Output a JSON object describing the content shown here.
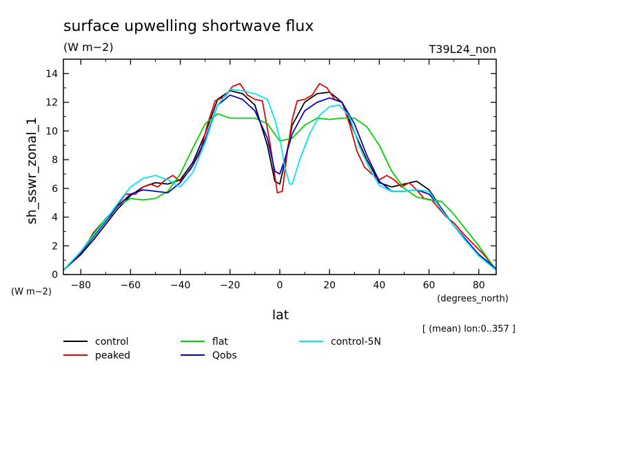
{
  "chart_data": {
    "type": "line",
    "title": "surface upwelling shortwave flux",
    "subtitle": "(W m−2)",
    "run_label": "T39L24_non",
    "ylabel": "sh_sswr_zonal_1",
    "y_units": "(W m−2)",
    "xlabel": "lat",
    "x_units": "(degrees_north)",
    "averaging_note": "[ (mean) lon:0..357 ]",
    "xlim": [
      -87,
      87
    ],
    "ylim": [
      0,
      15
    ],
    "xticks": [
      -80,
      -60,
      -40,
      -20,
      0,
      20,
      40,
      60,
      80
    ],
    "xtick_labels": [
      "−80",
      "−60",
      "−40",
      "−20",
      "0",
      "20",
      "40",
      "60",
      "80"
    ],
    "yticks": [
      0,
      2,
      4,
      6,
      8,
      10,
      12,
      14
    ],
    "ytick_labels": [
      "0",
      "2",
      "4",
      "6",
      "8",
      "10",
      "12",
      "14"
    ],
    "grid": false,
    "legend_position": "bottom",
    "series": [
      {
        "name": "control",
        "color": "#000000",
        "x": [
          -87,
          -80,
          -75,
          -70,
          -65,
          -60,
          -55,
          -50,
          -45,
          -40,
          -35,
          -30,
          -25,
          -20,
          -15,
          -10,
          -5,
          -2,
          0,
          2,
          5,
          10,
          15,
          20,
          25,
          30,
          35,
          40,
          45,
          50,
          55,
          60,
          65,
          70,
          75,
          80,
          87
        ],
        "y": [
          0.3,
          1.4,
          2.4,
          3.5,
          4.6,
          5.5,
          6.1,
          6.4,
          6.3,
          6.6,
          7.8,
          9.8,
          12.2,
          12.8,
          12.6,
          11.8,
          9.0,
          6.5,
          6.3,
          7.8,
          10.4,
          12.0,
          12.6,
          12.7,
          12.0,
          9.9,
          8.0,
          6.4,
          6.1,
          6.3,
          6.5,
          5.9,
          4.6,
          3.4,
          2.3,
          1.4,
          0.4
        ]
      },
      {
        "name": "peaked",
        "color": "#e00000",
        "x": [
          -87,
          -82,
          -78,
          -75,
          -72,
          -68,
          -65,
          -62,
          -58,
          -55,
          -52,
          -49,
          -46,
          -43,
          -40,
          -36,
          -32,
          -29,
          -26,
          -22,
          -19,
          -16,
          -13,
          -10,
          -7,
          -4,
          -1,
          1,
          3,
          5,
          7,
          10,
          13,
          16,
          19,
          22,
          25,
          28,
          31,
          34,
          37,
          40,
          43,
          46,
          49,
          52,
          55,
          58,
          61,
          64,
          67,
          70,
          74,
          78,
          82,
          87
        ],
        "y": [
          0.3,
          1.2,
          2.0,
          2.9,
          3.5,
          4.1,
          4.9,
          5.6,
          5.6,
          6.1,
          6.3,
          6.1,
          6.6,
          6.9,
          6.5,
          7.3,
          8.5,
          10.5,
          12.1,
          12.4,
          13.1,
          13.3,
          12.5,
          12.2,
          12.1,
          9.2,
          5.7,
          5.8,
          8.5,
          10.8,
          12.1,
          12.2,
          12.5,
          13.3,
          13.0,
          12.2,
          12.0,
          10.5,
          8.6,
          7.5,
          7.0,
          6.6,
          6.9,
          6.6,
          6.1,
          6.4,
          5.9,
          5.3,
          5.2,
          4.6,
          4.0,
          3.6,
          2.8,
          2.1,
          1.4,
          0.3
        ]
      },
      {
        "name": "flat",
        "color": "#00d000",
        "x": [
          -87,
          -80,
          -75,
          -70,
          -65,
          -60,
          -55,
          -50,
          -45,
          -40,
          -35,
          -30,
          -25,
          -20,
          -15,
          -10,
          -5,
          0,
          5,
          10,
          15,
          20,
          25,
          30,
          35,
          40,
          45,
          50,
          55,
          60,
          65,
          70,
          75,
          80,
          87
        ],
        "y": [
          0.3,
          1.6,
          2.8,
          3.9,
          4.8,
          5.3,
          5.2,
          5.3,
          5.8,
          7.0,
          8.8,
          10.5,
          11.2,
          10.9,
          10.9,
          10.9,
          10.5,
          9.3,
          9.5,
          10.4,
          10.9,
          10.8,
          10.9,
          10.9,
          10.3,
          9.0,
          7.2,
          6.0,
          5.4,
          5.2,
          5.1,
          4.2,
          3.1,
          2.0,
          0.3
        ]
      },
      {
        "name": "Qobs",
        "color": "#0000cc",
        "x": [
          -87,
          -80,
          -75,
          -70,
          -65,
          -60,
          -55,
          -50,
          -45,
          -40,
          -35,
          -30,
          -25,
          -20,
          -15,
          -10,
          -5,
          -2,
          0,
          2,
          5,
          10,
          15,
          20,
          25,
          30,
          35,
          40,
          45,
          50,
          55,
          60,
          65,
          70,
          75,
          80,
          87
        ],
        "y": [
          0.3,
          1.5,
          2.6,
          3.7,
          4.8,
          5.6,
          5.9,
          5.8,
          5.7,
          6.4,
          7.6,
          9.4,
          11.8,
          12.5,
          12.2,
          11.4,
          9.5,
          7.2,
          7.0,
          8.0,
          9.8,
          11.4,
          12.0,
          12.3,
          12.0,
          10.5,
          8.3,
          6.5,
          5.8,
          5.8,
          5.9,
          5.6,
          4.6,
          3.4,
          2.4,
          1.4,
          0.4
        ]
      },
      {
        "name": "control-5N",
        "color": "#00e5ee",
        "x": [
          -87,
          -80,
          -75,
          -70,
          -65,
          -60,
          -55,
          -50,
          -45,
          -40,
          -35,
          -30,
          -25,
          -20,
          -15,
          -10,
          -5,
          -2,
          0,
          2,
          4,
          5,
          8,
          12,
          16,
          20,
          24,
          28,
          32,
          36,
          40,
          45,
          50,
          55,
          60,
          65,
          70,
          75,
          80,
          87
        ],
        "y": [
          0.3,
          1.6,
          2.7,
          3.8,
          5.0,
          6.1,
          6.7,
          6.9,
          6.6,
          6.1,
          7.1,
          9.2,
          11.8,
          12.9,
          12.8,
          12.6,
          12.2,
          10.8,
          9.5,
          7.5,
          6.3,
          6.3,
          8.0,
          9.8,
          11.1,
          11.7,
          11.8,
          11.0,
          8.9,
          7.4,
          6.2,
          5.8,
          5.8,
          5.9,
          5.8,
          4.5,
          3.4,
          2.3,
          1.3,
          0.3
        ]
      }
    ]
  }
}
